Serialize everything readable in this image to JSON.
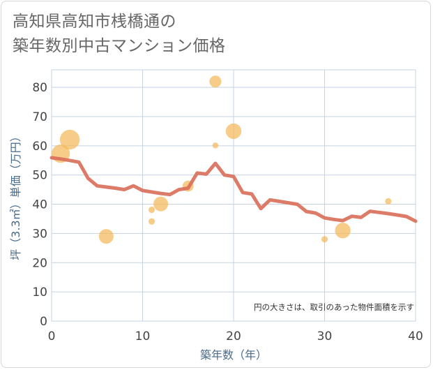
{
  "title": {
    "line1": "高知県高知市桟橋通の",
    "line2": "築年数別中古マンション価格"
  },
  "chart_data": {
    "type": "scatter+line",
    "xlabel": "築年数（年）",
    "ylabel": "坪（3.3㎡）単価（万円）",
    "xlim": [
      0,
      40
    ],
    "ylim": [
      0,
      86
    ],
    "x_ticks": [
      0,
      10,
      20,
      30,
      40
    ],
    "y_ticks": [
      0,
      10,
      20,
      30,
      40,
      50,
      60,
      70,
      80
    ],
    "grid": true,
    "note": "円の大きさは、取引のあった物件面積を示す",
    "colors": {
      "line": "#d9705a",
      "bubble": "#f4b95a",
      "grid": "#c5d3e2",
      "axis_text": "#4a6a8a"
    },
    "series": [
      {
        "name": "average",
        "type": "line",
        "points": [
          [
            0,
            55.9
          ],
          [
            1,
            55.5
          ],
          [
            2,
            55.0
          ],
          [
            3,
            54.4
          ],
          [
            4,
            48.9
          ],
          [
            5,
            46.3
          ],
          [
            6,
            45.9
          ],
          [
            7,
            45.5
          ],
          [
            8,
            45.0
          ],
          [
            9,
            46.3
          ],
          [
            10,
            44.7
          ],
          [
            11,
            44.2
          ],
          [
            12,
            43.7
          ],
          [
            13,
            43.3
          ],
          [
            14,
            45.0
          ],
          [
            15,
            45.5
          ],
          [
            16,
            50.7
          ],
          [
            17,
            50.3
          ],
          [
            18,
            54.0
          ],
          [
            19,
            50.0
          ],
          [
            20,
            49.5
          ],
          [
            21,
            44.0
          ],
          [
            22,
            43.5
          ],
          [
            23,
            38.5
          ],
          [
            24,
            41.5
          ],
          [
            25,
            41.0
          ],
          [
            26,
            40.5
          ],
          [
            27,
            40.0
          ],
          [
            28,
            37.5
          ],
          [
            29,
            37.0
          ],
          [
            30,
            35.3
          ],
          [
            31,
            34.8
          ],
          [
            32,
            34.4
          ],
          [
            33,
            35.9
          ],
          [
            34,
            35.5
          ],
          [
            35,
            37.6
          ],
          [
            36,
            37.2
          ],
          [
            37,
            36.8
          ],
          [
            38,
            36.3
          ],
          [
            39,
            35.8
          ],
          [
            40,
            34.2
          ]
        ]
      },
      {
        "name": "transactions",
        "type": "scatter",
        "points": [
          {
            "x": 1,
            "y": 57.3,
            "size": 3.2
          },
          {
            "x": 2,
            "y": 62.1,
            "size": 3.5
          },
          {
            "x": 6,
            "y": 29.0,
            "size": 2.4
          },
          {
            "x": 11,
            "y": 38.1,
            "size": 0.6
          },
          {
            "x": 11,
            "y": 34.1,
            "size": 0.6
          },
          {
            "x": 12,
            "y": 40.1,
            "size": 2.4
          },
          {
            "x": 15,
            "y": 46.2,
            "size": 1.6
          },
          {
            "x": 18,
            "y": 82.0,
            "size": 1.8
          },
          {
            "x": 18,
            "y": 60.1,
            "size": 0.5
          },
          {
            "x": 20,
            "y": 65.0,
            "size": 2.6
          },
          {
            "x": 30,
            "y": 28.0,
            "size": 0.6
          },
          {
            "x": 32,
            "y": 31.0,
            "size": 2.6
          },
          {
            "x": 37,
            "y": 41.0,
            "size": 0.6
          }
        ]
      }
    ]
  }
}
